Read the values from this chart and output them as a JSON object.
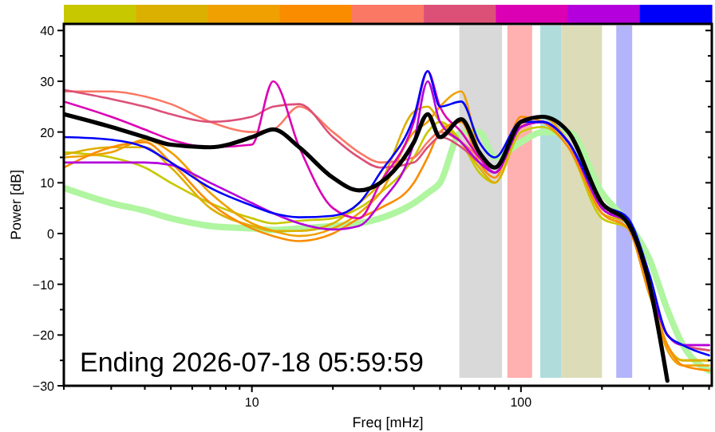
{
  "chart_data": {
    "type": "line",
    "xlabel": "Freq [mHz]",
    "ylabel": "Power [dB]",
    "log": "x",
    "grid": false,
    "marker": "none",
    "line_style": "solid",
    "annotations": [
      "Ending 2026-07-18 05:59:59"
    ],
    "xlim": [
      2,
      512
    ],
    "ylim": [
      -30,
      41.3
    ],
    "xticks": [
      {
        "value": 2,
        "label": null
      },
      {
        "value": 3,
        "label": null
      },
      {
        "value": 4,
        "label": null
      },
      {
        "value": 5,
        "label": null
      },
      {
        "value": 6,
        "label": null
      },
      {
        "value": 7,
        "label": null
      },
      {
        "value": 8,
        "label": null
      },
      {
        "value": 9,
        "label": null
      },
      10,
      {
        "value": 20,
        "label": null
      },
      {
        "value": 30,
        "label": null
      },
      {
        "value": 40,
        "label": null
      },
      {
        "value": 50,
        "label": null
      },
      {
        "value": 60,
        "label": null
      },
      {
        "value": 70,
        "label": null
      },
      {
        "value": 80,
        "label": null
      },
      {
        "value": 90,
        "label": null
      },
      100,
      {
        "value": 200,
        "label": null
      },
      {
        "value": 300,
        "label": null
      },
      {
        "value": 400,
        "label": null
      },
      {
        "value": 500,
        "label": null
      }
    ],
    "yticks": [
      {
        "value": -30,
        "label": "−30"
      },
      {
        "value": -25,
        "label": null
      },
      {
        "value": -20,
        "label": "−20"
      },
      {
        "value": -15,
        "label": null
      },
      {
        "value": -10,
        "label": "−10"
      },
      {
        "value": -5,
        "label": null
      },
      0,
      {
        "value": 5,
        "label": null
      },
      10,
      {
        "value": 15,
        "label": null
      },
      20,
      {
        "value": 25,
        "label": null
      },
      30,
      {
        "value": 35,
        "label": null
      },
      40
    ],
    "bands": [
      {
        "axis": "x",
        "from": 59,
        "to": 85,
        "color": "#d9d9d9"
      },
      {
        "axis": "x",
        "from": 89,
        "to": 110,
        "color": "#ffb0b0"
      },
      {
        "axis": "x",
        "from": 118,
        "to": 141,
        "color": "#b0dcdc"
      },
      {
        "axis": "x",
        "from": 141,
        "to": 200,
        "color": "#dcdcb8"
      },
      {
        "axis": "x",
        "from": 226,
        "to": 259,
        "color": "#b4b4fa"
      }
    ],
    "x": [
      2,
      3,
      4,
      5,
      7,
      10,
      12,
      15,
      20,
      25,
      30,
      40,
      45,
      50,
      60,
      70,
      80,
      100,
      120,
      150,
      200,
      250,
      300,
      350,
      400,
      500
    ],
    "series": [
      {
        "color": "#b0f5a0",
        "values": [
          9,
          6,
          4.5,
          3,
          1.5,
          1,
          0.7,
          1,
          1.5,
          2,
          3,
          6,
          8,
          10,
          20,
          20,
          15,
          18,
          20,
          20,
          8,
          2,
          -5,
          -15,
          -22,
          -27
        ]
      },
      {
        "color": "#c8c800",
        "values": [
          16,
          15,
          13,
          10,
          6,
          3,
          2,
          2.5,
          3,
          5,
          8,
          15,
          20,
          22,
          18,
          12,
          10,
          20,
          21,
          17,
          3,
          1,
          -12,
          -22,
          -25,
          -25
        ]
      },
      {
        "color": "#dcb000",
        "values": [
          15.5,
          17,
          17,
          13,
          5,
          1.5,
          0.5,
          0.5,
          2,
          6,
          10,
          24,
          25,
          22,
          18,
          13,
          10,
          21,
          22,
          18,
          4,
          2,
          -10,
          -22,
          -25,
          -25
        ]
      },
      {
        "color": "#f0a000",
        "values": [
          15,
          16,
          18.5,
          16,
          8,
          2,
          0.5,
          -0.5,
          1,
          4,
          8,
          20,
          22,
          25,
          28,
          16,
          12,
          22,
          23,
          18,
          5,
          2,
          -11,
          -23,
          -26,
          -26
        ]
      },
      {
        "color": "#fa8c00",
        "values": [
          13,
          17,
          18,
          14,
          6,
          1,
          -0.5,
          -1.5,
          0,
          3,
          5,
          10,
          15,
          20,
          22,
          14,
          11,
          23,
          22,
          17,
          4,
          1,
          -12,
          -22,
          -26,
          -27
        ]
      },
      {
        "color": "#fa7864",
        "values": [
          28,
          28,
          27,
          25.5,
          22,
          20,
          20.5,
          25,
          20,
          16,
          14,
          15,
          18,
          20,
          18,
          15,
          13,
          22,
          22,
          18,
          5,
          2,
          -10,
          -20,
          -22,
          -23
        ]
      },
      {
        "color": "#dc5078",
        "values": [
          28.3,
          26.5,
          25,
          23.5,
          22,
          23,
          25,
          25.5,
          19,
          15,
          13,
          14,
          17,
          19,
          17,
          14,
          12,
          21,
          22,
          18,
          5,
          2,
          -10,
          -20,
          -22,
          -23
        ]
      },
      {
        "color": "#dc00b4",
        "values": [
          26,
          23,
          20.5,
          18.5,
          17,
          17.5,
          30,
          17,
          5,
          3,
          10,
          22,
          32,
          25,
          20,
          15,
          12,
          21,
          22,
          18,
          5,
          2,
          -10,
          -20,
          -22,
          -22
        ]
      },
      {
        "color": "#b400dc",
        "values": [
          14,
          14,
          14,
          13.5,
          10,
          6,
          4,
          2,
          0.8,
          1.5,
          6,
          18,
          30,
          22,
          18,
          14,
          12,
          21,
          22,
          18,
          5,
          2,
          -10,
          -20,
          -22,
          -22
        ]
      },
      {
        "color": "#0000fa",
        "values": [
          19,
          18.5,
          17,
          14,
          9,
          5.5,
          4,
          3.2,
          3.5,
          6,
          12,
          23,
          32,
          25,
          26,
          18,
          15,
          22,
          22,
          18,
          6,
          3,
          -8,
          -20,
          -22,
          -24
        ]
      },
      {
        "color": "#000000",
        "values": [
          23.5,
          21,
          19,
          17.5,
          17,
          19,
          20.5,
          17,
          11,
          8.5,
          10,
          18,
          23.5,
          19,
          22.5,
          16,
          13,
          22,
          23,
          20,
          6,
          2,
          -10,
          -29,
          null,
          null
        ]
      }
    ]
  }
}
